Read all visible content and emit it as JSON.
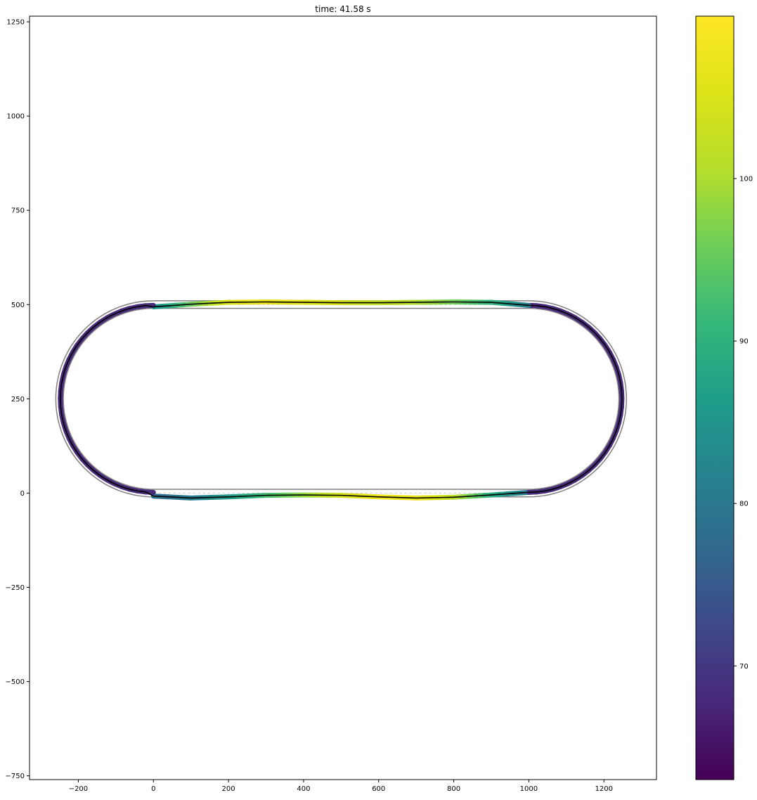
{
  "chart_data": {
    "type": "scatter",
    "title": "time: 41.58 s",
    "xlabel": "",
    "ylabel": "",
    "xlim": [
      -330,
      1340
    ],
    "ylim": [
      -760,
      1265
    ],
    "xticks": [
      -200,
      0,
      200,
      400,
      600,
      800,
      1000,
      1200
    ],
    "yticks": [
      -750,
      -500,
      -250,
      0,
      250,
      500,
      750,
      1000,
      1250
    ],
    "xtick_labels": [
      "−200",
      "0",
      "200",
      "400",
      "600",
      "800",
      "1000",
      "1200"
    ],
    "ytick_labels": [
      "−750",
      "−500",
      "−250",
      "0",
      "250",
      "500",
      "750",
      "1000",
      "1250"
    ],
    "grid": false,
    "track": {
      "straight_x": [
        0,
        1000
      ],
      "center_y": 250,
      "centerline_radius": 250,
      "outer_radius": 260,
      "inner_radius": 240,
      "boundary_color": "#808080",
      "centerline_color": "#cccccc"
    },
    "trajectory": {
      "color": "#000000",
      "points": [
        [
          0,
          -8
        ],
        [
          100,
          -13
        ],
        [
          200,
          -10
        ],
        [
          300,
          -6
        ],
        [
          400,
          -5
        ],
        [
          500,
          -6
        ],
        [
          600,
          -10
        ],
        [
          700,
          -13
        ],
        [
          800,
          -11
        ],
        [
          900,
          -5
        ],
        [
          1000,
          2
        ]
      ],
      "top_points": [
        [
          1000,
          498
        ],
        [
          900,
          506
        ],
        [
          800,
          507
        ],
        [
          700,
          506
        ],
        [
          600,
          505
        ],
        [
          500,
          505
        ],
        [
          400,
          506
        ],
        [
          300,
          507
        ],
        [
          200,
          506
        ],
        [
          100,
          501
        ],
        [
          0,
          494
        ]
      ],
      "curve_radius": 248
    },
    "speed_segments": [
      {
        "section": "bottom-straight",
        "x": [
          0,
          100,
          200,
          300,
          400,
          500,
          600,
          700,
          800,
          900,
          1000
        ],
        "speed": [
          78,
          80,
          86,
          92,
          98,
          104,
          108,
          108,
          102,
          90,
          80
        ]
      },
      {
        "section": "top-straight",
        "x": [
          1000,
          900,
          800,
          700,
          600,
          500,
          400,
          300,
          200,
          100,
          0
        ],
        "speed": [
          80,
          90,
          96,
          100,
          102,
          104,
          106,
          108,
          106,
          96,
          84
        ]
      },
      {
        "section": "right-curve",
        "speed": 68
      },
      {
        "section": "left-curve",
        "speed": 68
      }
    ],
    "colorbar": {
      "colormap": "viridis",
      "vmin": 63,
      "vmax": 110,
      "ticks": [
        70,
        80,
        90,
        100
      ],
      "tick_labels": [
        "70",
        "80",
        "90",
        "100"
      ]
    }
  }
}
